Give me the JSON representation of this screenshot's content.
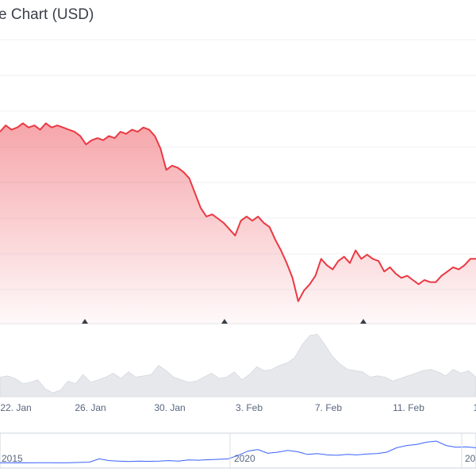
{
  "chart_data": {
    "type": "area",
    "title": "e Chart (USD)",
    "colors": {
      "price_line": "#ea3943",
      "price_fill_top": "#ea3943",
      "volume_fill": "#e6e8ec",
      "navigator_line": "#3861fb",
      "grid": "#eff2f5",
      "axis_text": "#58667e"
    },
    "price": {
      "x_start": 0,
      "x_step": 1,
      "values": [
        0.82,
        0.85,
        0.83,
        0.84,
        0.86,
        0.84,
        0.85,
        0.83,
        0.86,
        0.84,
        0.85,
        0.84,
        0.83,
        0.82,
        0.8,
        0.76,
        0.78,
        0.79,
        0.78,
        0.8,
        0.79,
        0.82,
        0.81,
        0.83,
        0.82,
        0.84,
        0.83,
        0.8,
        0.74,
        0.64,
        0.66,
        0.65,
        0.63,
        0.6,
        0.53,
        0.46,
        0.42,
        0.43,
        0.41,
        0.39,
        0.36,
        0.33,
        0.4,
        0.42,
        0.4,
        0.42,
        0.39,
        0.37,
        0.31,
        0.26,
        0.2,
        0.13,
        0.02,
        0.07,
        0.1,
        0.14,
        0.22,
        0.19,
        0.17,
        0.21,
        0.23,
        0.2,
        0.26,
        0.22,
        0.24,
        0.22,
        0.21,
        0.16,
        0.18,
        0.15,
        0.13,
        0.14,
        0.12,
        0.1,
        0.12,
        0.11,
        0.11,
        0.14,
        0.16,
        0.18,
        0.17,
        0.19,
        0.22,
        0.22
      ],
      "ylim": [
        0,
        1
      ]
    },
    "volume": {
      "values": [
        0.3,
        0.32,
        0.28,
        0.2,
        0.22,
        0.26,
        0.12,
        0.06,
        0.1,
        0.24,
        0.2,
        0.34,
        0.22,
        0.26,
        0.3,
        0.36,
        0.28,
        0.38,
        0.3,
        0.32,
        0.34,
        0.48,
        0.4,
        0.3,
        0.26,
        0.22,
        0.24,
        0.3,
        0.36,
        0.28,
        0.3,
        0.38,
        0.26,
        0.34,
        0.46,
        0.4,
        0.42,
        0.48,
        0.52,
        0.6,
        0.8,
        0.94,
        0.96,
        0.8,
        0.62,
        0.5,
        0.42,
        0.4,
        0.38,
        0.3,
        0.32,
        0.3,
        0.24,
        0.28,
        0.32,
        0.36,
        0.4,
        0.42,
        0.38,
        0.32,
        0.42,
        0.36,
        0.4,
        0.3
      ],
      "ylim": [
        0,
        1
      ]
    },
    "x_ticks": [
      "22. Jan",
      "26. Jan",
      "30. Jan",
      "3. Feb",
      "7. Feb",
      "11. Feb",
      "1"
    ],
    "event_markers": 3,
    "navigator": {
      "labels": [
        "2015",
        "2020",
        "20"
      ],
      "values": [
        0.02,
        0.02,
        0.03,
        0.02,
        0.03,
        0.03,
        0.02,
        0.03,
        0.04,
        0.05,
        0.2,
        0.12,
        0.1,
        0.08,
        0.1,
        0.09,
        0.1,
        0.12,
        0.1,
        0.15,
        0.14,
        0.16,
        0.18,
        0.2,
        0.35,
        0.55,
        0.62,
        0.45,
        0.5,
        0.58,
        0.52,
        0.4,
        0.44,
        0.38,
        0.36,
        0.4,
        0.38,
        0.42,
        0.44,
        0.5,
        0.7,
        0.8,
        0.85,
        0.95,
        1.0,
        0.8,
        0.72,
        0.74,
        0.7
      ],
      "ylim": [
        0,
        1
      ]
    }
  }
}
